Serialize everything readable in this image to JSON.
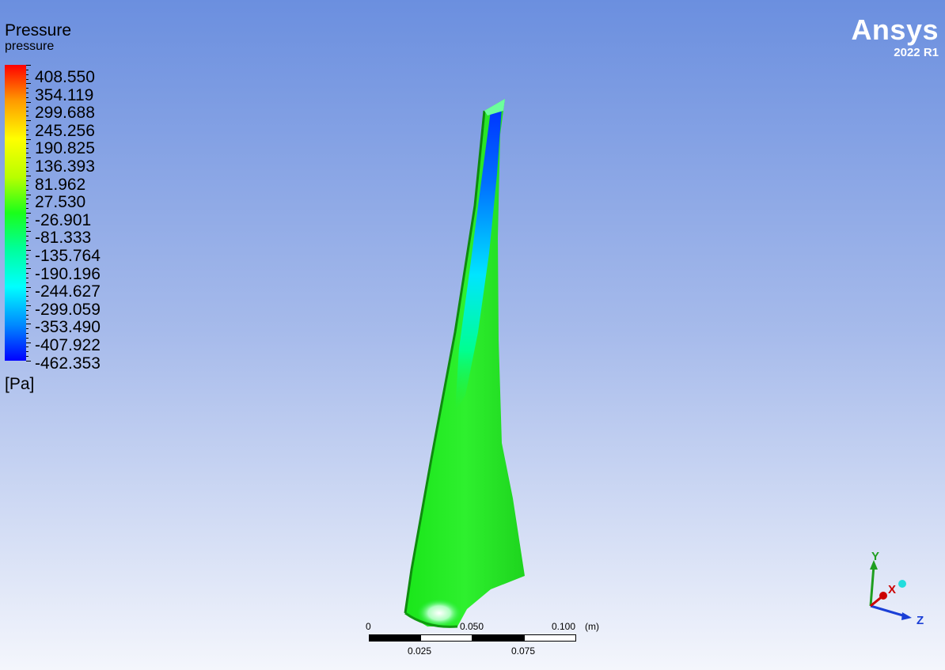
{
  "legend": {
    "title": "Pressure",
    "subtitle": "pressure",
    "values": [
      "408.550",
      "354.119",
      "299.688",
      "245.256",
      "190.825",
      "136.393",
      "81.962",
      "27.530",
      "-26.901",
      "-81.333",
      "-135.764",
      "-190.196",
      "-244.627",
      "-299.059",
      "-353.490",
      "-407.922",
      "-462.353"
    ],
    "unit": "[Pa]",
    "colors": [
      "#ff0000",
      "#ff9900",
      "#ffff00",
      "#1aff1a",
      "#00ffff",
      "#0000ff"
    ]
  },
  "logo": {
    "brand": "Ansys",
    "version": "2022 R1"
  },
  "scale": {
    "top_labels": [
      "0",
      "0.050",
      "0.100"
    ],
    "unit": "(m)",
    "bottom_labels": [
      "0.025",
      "0.075"
    ]
  },
  "triad": {
    "y": "Y",
    "x": "X",
    "z": "Z",
    "y_color": "#1f9e1f",
    "x_color": "#cc0000",
    "z_color": "#1a3fd6"
  }
}
